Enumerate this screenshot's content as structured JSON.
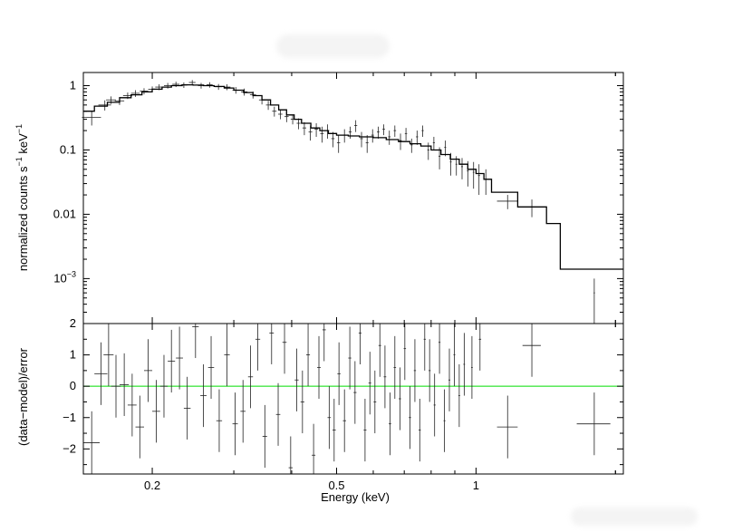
{
  "chart_data": [
    {
      "type": "scatter",
      "panel": "spectrum",
      "xlabel": "Energy (keV)",
      "ylabel_main": "normalized counts s",
      "ylabel_exp1": "−1",
      "ylabel_mid": " keV",
      "ylabel_exp2": "−1",
      "xscale": "log",
      "yscale": "log",
      "xlim": [
        0.142,
        2.08
      ],
      "ylim": [
        0.0002,
        1.6
      ],
      "x_ticks": [
        "0.2",
        "0.5",
        "1"
      ],
      "y_ticks": [
        {
          "base": "1",
          "exp": ""
        },
        {
          "base": "0.1",
          "exp": ""
        },
        {
          "base": "0.01",
          "exp": ""
        },
        {
          "base": "10",
          "exp": "−3"
        }
      ],
      "series": [
        {
          "kind": "data-with-errors",
          "points": [
            [
              0.148,
              0.32,
              0.007,
              0.08
            ],
            [
              0.158,
              0.5,
              0.005,
              0.09
            ],
            [
              0.163,
              0.6,
              0.004,
              0.08
            ],
            [
              0.17,
              0.58,
              0.004,
              0.08
            ],
            [
              0.177,
              0.7,
              0.004,
              0.08
            ],
            [
              0.184,
              0.76,
              0.004,
              0.09
            ],
            [
              0.192,
              0.82,
              0.004,
              0.09
            ],
            [
              0.2,
              0.88,
              0.004,
              0.09
            ],
            [
              0.207,
              0.95,
              0.004,
              0.1
            ],
            [
              0.216,
              1.0,
              0.004,
              0.1
            ],
            [
              0.225,
              1.05,
              0.004,
              0.1
            ],
            [
              0.234,
              1.02,
              0.004,
              0.1
            ],
            [
              0.244,
              1.12,
              0.004,
              0.1
            ],
            [
              0.255,
              1.0,
              0.004,
              0.1
            ],
            [
              0.266,
              1.03,
              0.004,
              0.1
            ],
            [
              0.278,
              0.96,
              0.005,
              0.1
            ],
            [
              0.29,
              0.95,
              0.005,
              0.1
            ],
            [
              0.303,
              0.85,
              0.005,
              0.1
            ],
            [
              0.316,
              0.8,
              0.005,
              0.1
            ],
            [
              0.33,
              0.72,
              0.005,
              0.09
            ],
            [
              0.345,
              0.6,
              0.005,
              0.09
            ],
            [
              0.356,
              0.5,
              0.004,
              0.08
            ],
            [
              0.367,
              0.4,
              0.004,
              0.07
            ],
            [
              0.378,
              0.36,
              0.004,
              0.06
            ],
            [
              0.39,
              0.33,
              0.004,
              0.06
            ],
            [
              0.402,
              0.3,
              0.004,
              0.05
            ],
            [
              0.414,
              0.26,
              0.004,
              0.05
            ],
            [
              0.426,
              0.22,
              0.004,
              0.05
            ],
            [
              0.439,
              0.19,
              0.004,
              0.05
            ],
            [
              0.452,
              0.21,
              0.004,
              0.05
            ],
            [
              0.465,
              0.18,
              0.004,
              0.05
            ],
            [
              0.478,
              0.2,
              0.004,
              0.05
            ],
            [
              0.491,
              0.15,
              0.004,
              0.04
            ],
            [
              0.505,
              0.13,
              0.004,
              0.04
            ],
            [
              0.52,
              0.17,
              0.004,
              0.04
            ],
            [
              0.535,
              0.19,
              0.004,
              0.04
            ],
            [
              0.55,
              0.24,
              0.004,
              0.05
            ],
            [
              0.566,
              0.15,
              0.004,
              0.04
            ],
            [
              0.582,
              0.13,
              0.004,
              0.04
            ],
            [
              0.598,
              0.17,
              0.004,
              0.04
            ],
            [
              0.615,
              0.19,
              0.004,
              0.04
            ],
            [
              0.632,
              0.21,
              0.004,
              0.04
            ],
            [
              0.65,
              0.16,
              0.004,
              0.04
            ],
            [
              0.668,
              0.2,
              0.004,
              0.04
            ],
            [
              0.687,
              0.14,
              0.004,
              0.04
            ],
            [
              0.706,
              0.18,
              0.004,
              0.04
            ],
            [
              0.726,
              0.12,
              0.004,
              0.03
            ],
            [
              0.746,
              0.16,
              0.004,
              0.04
            ],
            [
              0.767,
              0.2,
              0.004,
              0.04
            ],
            [
              0.789,
              0.1,
              0.004,
              0.03
            ],
            [
              0.811,
              0.13,
              0.004,
              0.03
            ],
            [
              0.834,
              0.08,
              0.004,
              0.03
            ],
            [
              0.858,
              0.11,
              0.004,
              0.03
            ],
            [
              0.882,
              0.065,
              0.004,
              0.025
            ],
            [
              0.907,
              0.06,
              0.004,
              0.02
            ],
            [
              0.933,
              0.055,
              0.004,
              0.02
            ],
            [
              0.96,
              0.047,
              0.004,
              0.02
            ],
            [
              0.988,
              0.045,
              0.004,
              0.02
            ],
            [
              1.015,
              0.04,
              0.005,
              0.02
            ],
            [
              1.05,
              0.035,
              0.006,
              0.015
            ],
            [
              1.17,
              0.016,
              0.06,
              0.004
            ],
            [
              1.32,
              0.013,
              0.06,
              0.004
            ],
            [
              1.8,
              0.0006,
              0.006,
              0.0004
            ]
          ]
        },
        {
          "kind": "model-step",
          "steps": [
            [
              0.142,
              0.4
            ],
            [
              0.15,
              0.48
            ],
            [
              0.16,
              0.55
            ],
            [
              0.17,
              0.65
            ],
            [
              0.18,
              0.72
            ],
            [
              0.19,
              0.8
            ],
            [
              0.2,
              0.88
            ],
            [
              0.21,
              0.95
            ],
            [
              0.22,
              1.0
            ],
            [
              0.232,
              1.03
            ],
            [
              0.245,
              1.02
            ],
            [
              0.258,
              1.0
            ],
            [
              0.272,
              0.97
            ],
            [
              0.286,
              0.92
            ],
            [
              0.3,
              0.85
            ],
            [
              0.315,
              0.78
            ],
            [
              0.33,
              0.7
            ],
            [
              0.345,
              0.6
            ],
            [
              0.36,
              0.5
            ],
            [
              0.375,
              0.42
            ],
            [
              0.39,
              0.35
            ],
            [
              0.405,
              0.3
            ],
            [
              0.42,
              0.26
            ],
            [
              0.44,
              0.22
            ],
            [
              0.46,
              0.2
            ],
            [
              0.48,
              0.18
            ],
            [
              0.5,
              0.17
            ],
            [
              0.53,
              0.165
            ],
            [
              0.56,
              0.16
            ],
            [
              0.6,
              0.155
            ],
            [
              0.64,
              0.145
            ],
            [
              0.68,
              0.135
            ],
            [
              0.72,
              0.125
            ],
            [
              0.76,
              0.115
            ],
            [
              0.8,
              0.1
            ],
            [
              0.84,
              0.085
            ],
            [
              0.88,
              0.072
            ],
            [
              0.92,
              0.06
            ],
            [
              0.96,
              0.05
            ],
            [
              1.0,
              0.043
            ],
            [
              1.04,
              0.035
            ],
            [
              1.08,
              0.022
            ],
            [
              1.23,
              0.013
            ],
            [
              1.42,
              0.0072
            ],
            [
              1.5,
              0.0072
            ],
            [
              1.52,
              0.0014
            ],
            [
              2.08,
              0.0014
            ]
          ]
        }
      ]
    },
    {
      "type": "scatter",
      "panel": "residuals",
      "ylabel": "(data−model)/error",
      "xscale": "log",
      "xlim": [
        0.142,
        2.08
      ],
      "ylim": [
        -2.8,
        2.0
      ],
      "y_ticks": [
        "2",
        "1",
        "0",
        "−1",
        "−2"
      ],
      "zero_line_color": "#00dd00",
      "series": [
        {
          "kind": "residuals",
          "points": [
            [
              0.148,
              -1.8,
              0.006,
              1.0
            ],
            [
              0.155,
              0.4,
              0.005,
              1.0
            ],
            [
              0.161,
              1.0,
              0.004,
              1.0
            ],
            [
              0.167,
              0.0,
              0.004,
              1.0
            ],
            [
              0.174,
              0.05,
              0.004,
              1.0
            ],
            [
              0.181,
              -0.6,
              0.004,
              1.0
            ],
            [
              0.188,
              -1.3,
              0.004,
              1.0
            ],
            [
              0.196,
              0.5,
              0.004,
              1.0
            ],
            [
              0.204,
              -0.8,
              0.004,
              1.0
            ],
            [
              0.212,
              0.0,
              0.004,
              1.0
            ],
            [
              0.22,
              0.8,
              0.004,
              1.0
            ],
            [
              0.229,
              0.9,
              0.004,
              1.0
            ],
            [
              0.238,
              -0.7,
              0.004,
              1.0
            ],
            [
              0.248,
              1.9,
              0.004,
              1.0
            ],
            [
              0.258,
              -0.3,
              0.004,
              1.0
            ],
            [
              0.268,
              0.6,
              0.004,
              1.0
            ],
            [
              0.279,
              -1.1,
              0.004,
              1.0
            ],
            [
              0.29,
              1.0,
              0.004,
              1.0
            ],
            [
              0.302,
              -1.2,
              0.004,
              1.0
            ],
            [
              0.314,
              -0.8,
              0.004,
              1.0
            ],
            [
              0.326,
              0.3,
              0.004,
              1.0
            ],
            [
              0.338,
              1.5,
              0.004,
              1.0
            ],
            [
              0.35,
              -1.6,
              0.004,
              1.0
            ],
            [
              0.362,
              1.7,
              0.004,
              1.0
            ],
            [
              0.374,
              -0.9,
              0.004,
              1.0
            ],
            [
              0.386,
              1.4,
              0.004,
              1.0
            ],
            [
              0.398,
              -2.6,
              0.004,
              1.0
            ],
            [
              0.41,
              0.2,
              0.004,
              1.0
            ],
            [
              0.422,
              -0.5,
              0.004,
              1.0
            ],
            [
              0.434,
              1.0,
              0.004,
              1.0
            ],
            [
              0.446,
              -2.2,
              0.004,
              1.0
            ],
            [
              0.458,
              0.6,
              0.004,
              1.0
            ],
            [
              0.47,
              1.8,
              0.004,
              1.0
            ],
            [
              0.482,
              -1.0,
              0.004,
              1.0
            ],
            [
              0.494,
              -1.4,
              0.004,
              1.0
            ],
            [
              0.506,
              0.4,
              0.004,
              1.0
            ],
            [
              0.52,
              -1.1,
              0.004,
              1.0
            ],
            [
              0.534,
              0.9,
              0.004,
              1.0
            ],
            [
              0.548,
              -0.2,
              0.004,
              1.0
            ],
            [
              0.562,
              1.7,
              0.004,
              1.0
            ],
            [
              0.576,
              -1.4,
              0.004,
              1.0
            ],
            [
              0.59,
              0.1,
              0.004,
              1.0
            ],
            [
              0.605,
              -0.5,
              0.004,
              1.0
            ],
            [
              0.62,
              1.3,
              0.004,
              1.0
            ],
            [
              0.636,
              0.3,
              0.004,
              1.0
            ],
            [
              0.652,
              -1.2,
              0.004,
              1.0
            ],
            [
              0.668,
              0.6,
              0.004,
              1.0
            ],
            [
              0.685,
              -0.4,
              0.004,
              1.0
            ],
            [
              0.702,
              1.2,
              0.004,
              1.0
            ],
            [
              0.72,
              -1.0,
              0.004,
              1.0
            ],
            [
              0.738,
              0.5,
              0.004,
              1.0
            ],
            [
              0.756,
              -1.4,
              0.004,
              1.0
            ],
            [
              0.775,
              1.5,
              0.004,
              1.0
            ],
            [
              0.794,
              0.5,
              0.004,
              1.0
            ],
            [
              0.814,
              -0.6,
              0.004,
              1.0
            ],
            [
              0.834,
              1.4,
              0.004,
              1.0
            ],
            [
              0.855,
              -1.1,
              0.004,
              1.0
            ],
            [
              0.876,
              0.2,
              0.004,
              1.0
            ],
            [
              0.898,
              1.0,
              0.004,
              1.0
            ],
            [
              0.92,
              -0.3,
              0.004,
              1.0
            ],
            [
              0.943,
              0.7,
              0.004,
              1.0
            ],
            [
              0.98,
              0.6,
              0.004,
              1.0
            ],
            [
              1.02,
              1.5,
              0.006,
              1.0
            ],
            [
              1.17,
              -1.3,
              0.06,
              1.0
            ],
            [
              1.32,
              1.3,
              0.06,
              1.0
            ],
            [
              1.8,
              -1.2,
              0.15,
              1.0
            ]
          ]
        }
      ]
    }
  ]
}
